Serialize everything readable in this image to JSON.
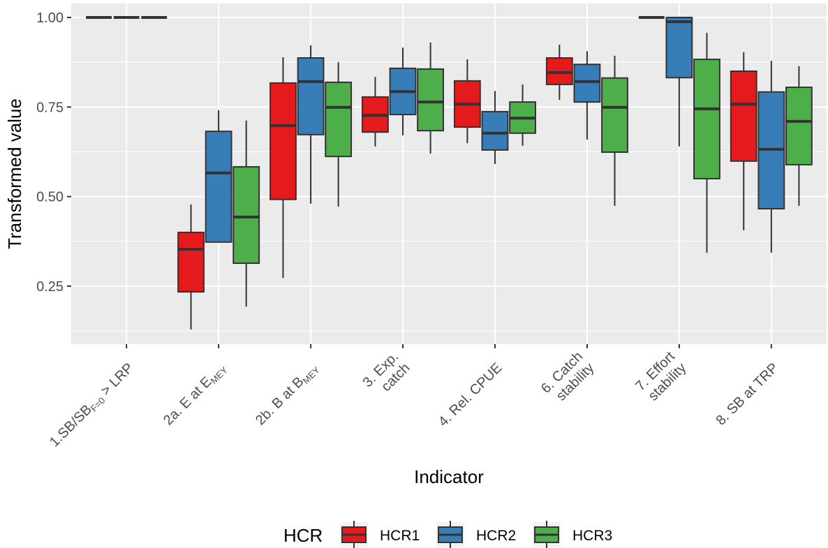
{
  "chart_data": {
    "type": "boxplot",
    "x_label": "Indicator",
    "y_label": "Transformed value",
    "categories": [
      [
        [
          "1.SB/SB",
          {
            "sub": "F=0"
          },
          " > LRP"
        ]
      ],
      [
        [
          "2a. E at E",
          {
            "sub": "MEY"
          }
        ]
      ],
      [
        [
          "2b. B at B",
          {
            "sub": "MEY"
          }
        ]
      ],
      [
        [
          "3. Exp."
        ],
        [
          "catch"
        ]
      ],
      [
        [
          "4. Rel. CPUE"
        ]
      ],
      [
        [
          "6. Catch"
        ],
        [
          "stability"
        ]
      ],
      [
        [
          "7. Effort"
        ],
        [
          "stability"
        ]
      ],
      [
        [
          "8. SB at TRP"
        ]
      ]
    ],
    "series": [
      {
        "name": "HCR1",
        "color": "#e41a1c",
        "low": [
          1.0,
          0.129,
          0.273,
          0.64,
          0.649,
          0.77,
          1.0,
          0.406
        ],
        "q1": [
          1.0,
          0.234,
          0.492,
          0.68,
          0.694,
          0.813,
          1.0,
          0.599
        ],
        "median": [
          1.0,
          0.353,
          0.698,
          0.727,
          0.758,
          0.846,
          1.0,
          0.758
        ],
        "q3": [
          1.0,
          0.4,
          0.817,
          0.778,
          0.823,
          0.887,
          1.0,
          0.85
        ],
        "high": [
          1.0,
          0.478,
          0.889,
          0.834,
          0.883,
          0.924,
          1.0,
          0.903
        ]
      },
      {
        "name": "HCR2",
        "color": "#377eb8",
        "low": [
          1.0,
          0.373,
          0.48,
          0.671,
          0.591,
          0.659,
          0.64,
          0.343
        ],
        "q1": [
          1.0,
          0.373,
          0.673,
          0.729,
          0.63,
          0.764,
          0.832,
          0.466
        ],
        "median": [
          1.0,
          0.566,
          0.821,
          0.793,
          0.677,
          0.821,
          0.988,
          0.632
        ],
        "q3": [
          1.0,
          0.682,
          0.887,
          0.858,
          0.737,
          0.869,
          1.0,
          0.792
        ],
        "high": [
          1.0,
          0.741,
          0.922,
          0.916,
          0.795,
          0.906,
          1.0,
          0.879
        ]
      },
      {
        "name": "HCR3",
        "color": "#4daf4a",
        "low": [
          1.0,
          0.193,
          0.472,
          0.62,
          0.642,
          0.474,
          0.343,
          0.474
        ],
        "q1": [
          1.0,
          0.314,
          0.612,
          0.684,
          0.677,
          0.624,
          0.55,
          0.589
        ],
        "median": [
          1.0,
          0.443,
          0.749,
          0.764,
          0.719,
          0.749,
          0.745,
          0.71
        ],
        "q3": [
          1.0,
          0.583,
          0.819,
          0.856,
          0.764,
          0.831,
          0.883,
          0.805
        ],
        "high": [
          1.0,
          0.712,
          0.875,
          0.93,
          0.813,
          0.893,
          0.957,
          0.864
        ]
      }
    ],
    "legend_title": "HCR",
    "legend_position": "bottom",
    "ylim": [
      0.088,
      1.039
    ],
    "yticks": [
      {
        "value": 0.25,
        "label": "0.25"
      },
      {
        "value": 0.5,
        "label": "0.50"
      },
      {
        "value": 0.75,
        "label": "0.75"
      },
      {
        "value": 1.0,
        "label": "1.00"
      }
    ],
    "yminor": [
      0.125,
      0.375,
      0.625,
      0.875
    ],
    "grid": true
  }
}
